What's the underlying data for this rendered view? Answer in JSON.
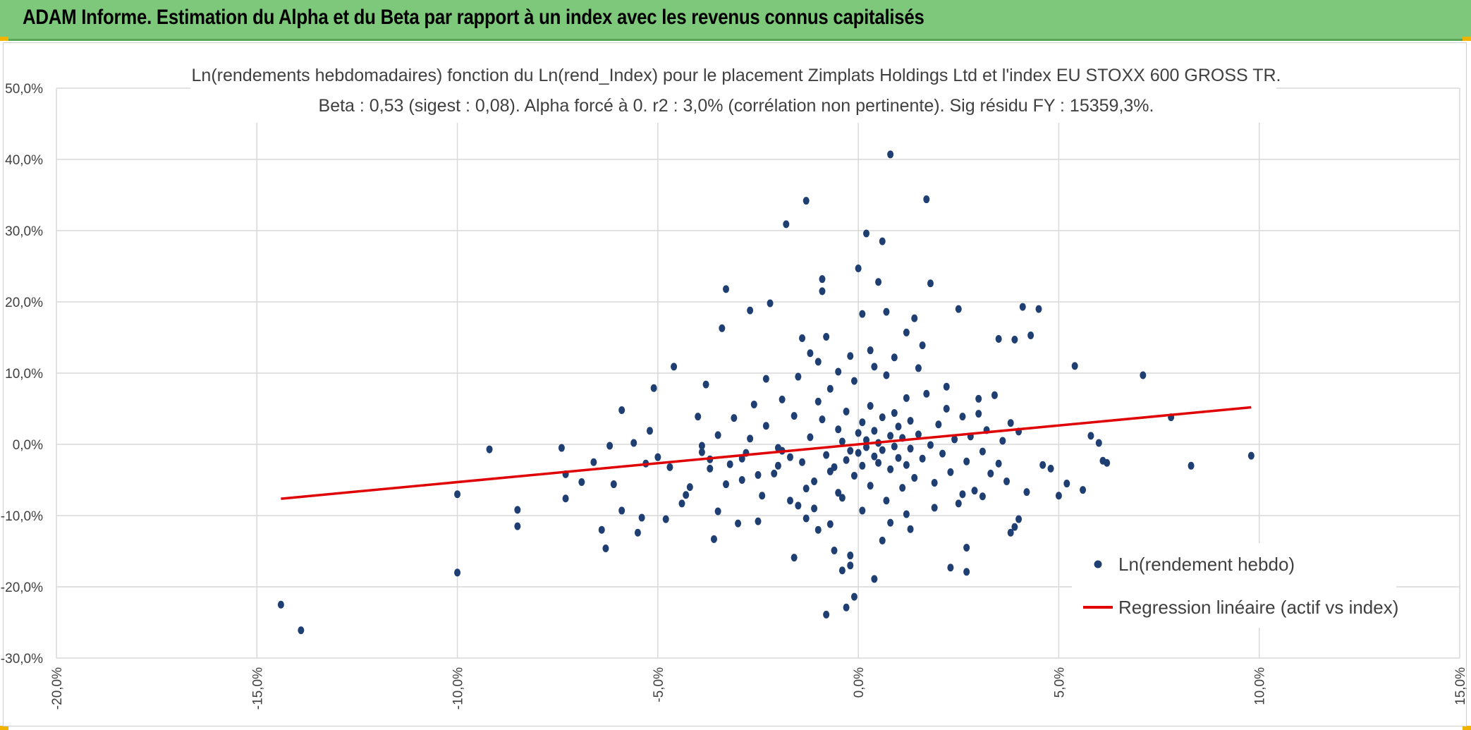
{
  "header": {
    "title": "ADAM Informe. Estimation du Alpha et du Beta par rapport à un index avec les revenus connus capitalisés"
  },
  "colors": {
    "header_bg": "#7dc87a",
    "points": "#1f3f73",
    "regression": "#e00000",
    "grid": "#d9d9d9",
    "accent": "#f0b400"
  },
  "chart_data": {
    "type": "scatter",
    "title": "Ln(rendements hebdomadaires) fonction du Ln(rend_Index) pour le placement Zimplats Holdings Ltd et l'index EU STOXX 600 GROSS TR.",
    "subtitle": "Beta : 0,53 (sigest : 0,08). Alpha forcé à 0. r2 : 3,0% (corrélation non pertinente). Sig résidu FY : 15359,3%.",
    "xlabel": "",
    "ylabel": "",
    "xlim": [
      -20,
      15
    ],
    "ylim": [
      -30,
      50
    ],
    "x_ticks": [
      "-20,0%",
      "-15,0%",
      "-10,0%",
      "-5,0%",
      "0,0%",
      "5,0%",
      "10,0%",
      "15,0%"
    ],
    "y_ticks": [
      "-30,0%",
      "-20,0%",
      "-10,0%",
      "0,0%",
      "10,0%",
      "20,0%",
      "30,0%",
      "40,0%",
      "50,0%"
    ],
    "grid": true,
    "legend_position": "bottom-right",
    "series": [
      {
        "name": "Ln(rendement hebdo)",
        "kind": "scatter",
        "points": [
          [
            -14.4,
            -22.5
          ],
          [
            -13.9,
            -26.1
          ],
          [
            -10.0,
            -18.0
          ],
          [
            -10.0,
            -7.0
          ],
          [
            -9.2,
            -0.7
          ],
          [
            -8.5,
            -9.2
          ],
          [
            -8.5,
            -11.5
          ],
          [
            -7.4,
            -0.5
          ],
          [
            -7.3,
            -4.2
          ],
          [
            -7.3,
            -7.6
          ],
          [
            -6.9,
            -5.3
          ],
          [
            -6.6,
            -2.5
          ],
          [
            -6.4,
            -12.0
          ],
          [
            -6.3,
            -14.6
          ],
          [
            -6.2,
            -0.2
          ],
          [
            -6.1,
            -5.6
          ],
          [
            -5.9,
            4.8
          ],
          [
            -5.9,
            -9.3
          ],
          [
            -5.6,
            0.2
          ],
          [
            -5.5,
            -12.4
          ],
          [
            -5.4,
            -10.3
          ],
          [
            -5.3,
            -2.7
          ],
          [
            -5.2,
            1.9
          ],
          [
            -5.1,
            7.9
          ],
          [
            -5.0,
            -1.8
          ],
          [
            -4.8,
            -10.5
          ],
          [
            -4.7,
            -3.2
          ],
          [
            -4.6,
            10.9
          ],
          [
            -4.4,
            -8.3
          ],
          [
            -4.3,
            -7.1
          ],
          [
            -4.2,
            -6.0
          ],
          [
            -4.0,
            3.9
          ],
          [
            -3.9,
            -0.2
          ],
          [
            -3.8,
            8.4
          ],
          [
            -3.7,
            -2.1
          ],
          [
            -3.6,
            -13.3
          ],
          [
            -3.5,
            -9.4
          ],
          [
            -3.4,
            16.3
          ],
          [
            -3.3,
            21.8
          ],
          [
            -3.2,
            -2.8
          ],
          [
            -3.0,
            -11.1
          ],
          [
            -2.9,
            -5.0
          ],
          [
            -2.8,
            -1.2
          ],
          [
            -2.7,
            18.8
          ],
          [
            -2.6,
            5.6
          ],
          [
            -2.5,
            -10.8
          ],
          [
            -2.4,
            -7.2
          ],
          [
            -2.3,
            9.2
          ],
          [
            -2.2,
            19.8
          ],
          [
            -2.1,
            -4.1
          ],
          [
            -2.0,
            -3.0
          ],
          [
            -1.9,
            -0.9
          ],
          [
            -1.8,
            30.9
          ],
          [
            -1.7,
            -1.8
          ],
          [
            -1.6,
            -15.9
          ],
          [
            -1.5,
            -8.6
          ],
          [
            -1.4,
            14.9
          ],
          [
            -1.3,
            34.2
          ],
          [
            -1.3,
            -6.2
          ],
          [
            -1.2,
            12.8
          ],
          [
            -1.1,
            -9.0
          ],
          [
            -1.0,
            -12.0
          ],
          [
            -1.0,
            6.0
          ],
          [
            -0.9,
            23.2
          ],
          [
            -0.9,
            21.5
          ],
          [
            -0.8,
            -23.9
          ],
          [
            -0.8,
            15.1
          ],
          [
            -0.7,
            -3.8
          ],
          [
            -0.6,
            -14.9
          ],
          [
            -0.5,
            10.2
          ],
          [
            -0.4,
            -17.7
          ],
          [
            -0.4,
            -7.5
          ],
          [
            -0.3,
            -22.9
          ],
          [
            -0.2,
            -17.0
          ],
          [
            -0.2,
            -15.6
          ],
          [
            -0.1,
            -21.4
          ],
          [
            0.0,
            24.7
          ],
          [
            0.1,
            18.3
          ],
          [
            0.2,
            29.6
          ],
          [
            0.4,
            -18.9
          ],
          [
            0.5,
            22.8
          ],
          [
            0.6,
            28.5
          ],
          [
            0.7,
            18.6
          ],
          [
            0.8,
            40.7
          ],
          [
            1.2,
            15.7
          ],
          [
            1.3,
            -11.9
          ],
          [
            1.4,
            17.7
          ],
          [
            1.7,
            34.4
          ],
          [
            1.8,
            22.6
          ],
          [
            2.3,
            -17.3
          ],
          [
            2.5,
            19.0
          ],
          [
            2.7,
            -17.9
          ],
          [
            2.7,
            -14.5
          ],
          [
            3.1,
            -7.3
          ],
          [
            3.5,
            14.8
          ],
          [
            3.8,
            -12.4
          ],
          [
            3.9,
            -11.6
          ],
          [
            3.9,
            14.7
          ],
          [
            4.0,
            -10.5
          ],
          [
            4.1,
            19.3
          ],
          [
            4.2,
            -6.7
          ],
          [
            4.3,
            15.3
          ],
          [
            4.5,
            19.0
          ],
          [
            4.6,
            -2.9
          ],
          [
            4.8,
            -3.4
          ],
          [
            5.0,
            -7.2
          ],
          [
            5.2,
            -5.5
          ],
          [
            5.4,
            11.0
          ],
          [
            5.6,
            -6.4
          ],
          [
            5.8,
            1.2
          ],
          [
            6.0,
            0.2
          ],
          [
            6.1,
            -2.3
          ],
          [
            6.2,
            -2.6
          ],
          [
            7.1,
            9.7
          ],
          [
            7.8,
            3.8
          ],
          [
            8.3,
            -3.0
          ],
          [
            9.8,
            -1.6
          ],
          [
            -1.6,
            4.0
          ],
          [
            -1.4,
            -2.5
          ],
          [
            -1.2,
            1.0
          ],
          [
            -1.1,
            -5.2
          ],
          [
            -0.9,
            3.5
          ],
          [
            -0.8,
            -1.5
          ],
          [
            -0.7,
            7.8
          ],
          [
            -0.6,
            -3.2
          ],
          [
            -0.5,
            2.1
          ],
          [
            -0.5,
            -6.8
          ],
          [
            -0.4,
            0.4
          ],
          [
            -0.3,
            4.6
          ],
          [
            -0.3,
            -2.2
          ],
          [
            -0.2,
            -0.9
          ],
          [
            -0.1,
            8.9
          ],
          [
            -0.1,
            -4.4
          ],
          [
            0.0,
            1.6
          ],
          [
            0.0,
            -1.2
          ],
          [
            0.1,
            3.1
          ],
          [
            0.1,
            -3.0
          ],
          [
            0.2,
            0.6
          ],
          [
            0.2,
            -0.4
          ],
          [
            0.3,
            5.4
          ],
          [
            0.3,
            -5.8
          ],
          [
            0.4,
            1.9
          ],
          [
            0.4,
            -1.7
          ],
          [
            0.5,
            0.2
          ],
          [
            0.5,
            -2.6
          ],
          [
            0.6,
            3.8
          ],
          [
            0.6,
            -0.8
          ],
          [
            0.7,
            -7.9
          ],
          [
            0.7,
            9.7
          ],
          [
            0.8,
            1.2
          ],
          [
            0.8,
            -3.5
          ],
          [
            0.9,
            -0.3
          ],
          [
            0.9,
            4.4
          ],
          [
            1.0,
            -1.9
          ],
          [
            1.0,
            2.5
          ],
          [
            1.1,
            -6.1
          ],
          [
            1.1,
            0.9
          ],
          [
            1.2,
            -2.9
          ],
          [
            1.2,
            6.5
          ],
          [
            1.3,
            -0.6
          ],
          [
            1.3,
            3.3
          ],
          [
            1.4,
            -4.7
          ],
          [
            1.5,
            1.4
          ],
          [
            1.6,
            -2.0
          ],
          [
            1.7,
            7.1
          ],
          [
            1.8,
            -0.1
          ],
          [
            1.9,
            -5.4
          ],
          [
            2.0,
            2.8
          ],
          [
            2.1,
            -1.3
          ],
          [
            2.2,
            5.0
          ],
          [
            2.3,
            -3.9
          ],
          [
            2.4,
            0.7
          ],
          [
            2.5,
            -8.3
          ],
          [
            2.6,
            3.9
          ],
          [
            2.7,
            -2.4
          ],
          [
            2.8,
            1.1
          ],
          [
            2.9,
            -6.5
          ],
          [
            3.0,
            4.3
          ],
          [
            3.1,
            -1.0
          ],
          [
            3.2,
            2.0
          ],
          [
            3.3,
            -4.1
          ],
          [
            3.4,
            6.9
          ],
          [
            3.5,
            -2.7
          ],
          [
            3.6,
            0.5
          ],
          [
            3.7,
            -5.2
          ],
          [
            3.8,
            3.0
          ],
          [
            4.0,
            1.8
          ],
          [
            -2.0,
            -0.5
          ],
          [
            -2.3,
            2.6
          ],
          [
            -2.5,
            -4.3
          ],
          [
            -2.7,
            0.8
          ],
          [
            -2.9,
            -2.0
          ],
          [
            -3.1,
            3.7
          ],
          [
            -3.3,
            -5.6
          ],
          [
            -3.5,
            1.3
          ],
          [
            -3.7,
            -3.4
          ],
          [
            -3.9,
            -1.1
          ],
          [
            -1.9,
            6.3
          ],
          [
            -1.7,
            -7.9
          ],
          [
            -1.5,
            9.5
          ],
          [
            -1.3,
            -10.4
          ],
          [
            -1.0,
            11.6
          ],
          [
            -0.7,
            -11.2
          ],
          [
            0.3,
            13.2
          ],
          [
            0.6,
            -13.5
          ],
          [
            0.9,
            12.2
          ],
          [
            1.2,
            -9.8
          ],
          [
            1.5,
            10.7
          ],
          [
            1.9,
            -8.9
          ],
          [
            2.2,
            8.1
          ],
          [
            2.6,
            -7.0
          ],
          [
            3.0,
            6.4
          ],
          [
            0.1,
            -9.3
          ],
          [
            0.4,
            10.9
          ],
          [
            -0.2,
            12.4
          ],
          [
            0.8,
            -11.0
          ],
          [
            1.6,
            13.9
          ]
        ]
      },
      {
        "name": "Regression linéaire (actif vs index)",
        "kind": "line",
        "beta": 0.53,
        "alpha": 0,
        "x_range": [
          -14.4,
          9.8
        ]
      }
    ]
  }
}
